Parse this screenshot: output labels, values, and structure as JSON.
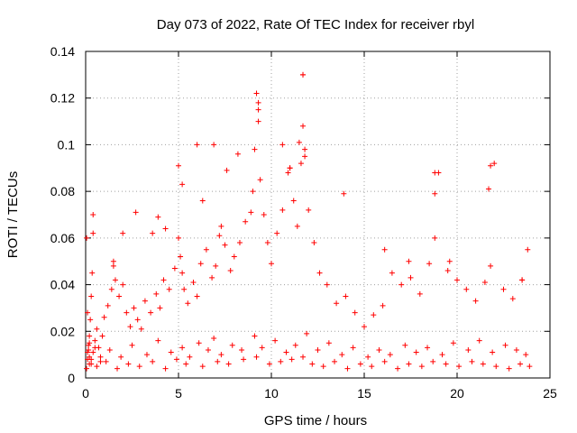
{
  "colors": {
    "marker": "#ff0000",
    "grid": "#a0a0a0",
    "axis": "#000000",
    "background": "#ffffff"
  },
  "chart_data": {
    "type": "scatter",
    "title": "Day 073 of 2022, Rate Of TEC Index for receiver rbyl",
    "xlabel": "GPS time / hours",
    "ylabel": "ROTI / TECUs",
    "xlim": [
      0,
      25
    ],
    "ylim": [
      0,
      0.14
    ],
    "grid": true,
    "marker": "+",
    "x_ticks": [
      0,
      5,
      10,
      15,
      20,
      25
    ],
    "x_tick_labels": [
      "0",
      "5",
      "10",
      "15",
      "20",
      "25"
    ],
    "y_ticks": [
      0,
      0.02,
      0.04,
      0.06,
      0.08,
      0.1,
      0.12,
      0.14
    ],
    "y_tick_labels": [
      "0",
      "0.02",
      "0.04",
      "0.06",
      "0.08",
      "0.1",
      "0.12",
      "0.14"
    ],
    "series": [
      {
        "name": "ROTI",
        "x": [
          0.05,
          0.1,
          0.15,
          0.2,
          0.25,
          0.3,
          0.35,
          0.4,
          0.05,
          0.1,
          0.15,
          0.2,
          0.3,
          0.4,
          0.5,
          0.6,
          0.7,
          0.8,
          0.9,
          1.0,
          1.2,
          1.4,
          1.5,
          1.6,
          1.8,
          2.0,
          2.2,
          2.4,
          2.6,
          2.8,
          3.0,
          3.2,
          3.5,
          3.8,
          4.0,
          4.2,
          4.5,
          4.8,
          5.0,
          5.1,
          5.2,
          5.3,
          5.5,
          5.8,
          6.0,
          6.2,
          6.5,
          6.8,
          7.0,
          7.2,
          7.5,
          7.8,
          8.0,
          8.3,
          8.6,
          8.9,
          9.0,
          9.1,
          9.2,
          9.3,
          9.4,
          9.6,
          9.8,
          10.0,
          10.3,
          10.6,
          10.9,
          11.0,
          11.2,
          11.4,
          11.6,
          11.7,
          11.8,
          12.0,
          12.3,
          12.6,
          13.0,
          13.5,
          14.0,
          14.5,
          15.0,
          15.5,
          16.0,
          16.5,
          17.0,
          17.5,
          18.0,
          18.5,
          18.8,
          19.0,
          19.5,
          20.0,
          20.5,
          21.0,
          21.5,
          21.8,
          22.0,
          22.5,
          23.0,
          23.5,
          23.8,
          0.1,
          0.2,
          0.3,
          0.5,
          0.8,
          1.3,
          1.9,
          2.5,
          3.3,
          3.9,
          4.6,
          5.2,
          5.6,
          6.1,
          6.6,
          6.9,
          7.3,
          7.9,
          8.4,
          9.1,
          9.5,
          10.2,
          10.8,
          11.3,
          11.9,
          12.5,
          13.1,
          13.8,
          14.4,
          15.2,
          15.8,
          16.4,
          17.2,
          17.8,
          18.4,
          19.2,
          19.8,
          20.6,
          21.2,
          21.9,
          22.6,
          23.2,
          23.7,
          0.2,
          0.6,
          1.1,
          1.7,
          2.3,
          2.9,
          3.6,
          4.3,
          4.9,
          5.4,
          6.3,
          7.1,
          7.7,
          8.5,
          9.2,
          9.9,
          10.5,
          11.1,
          11.7,
          12.2,
          12.8,
          13.4,
          14.1,
          14.8,
          15.4,
          16.1,
          16.8,
          17.4,
          18.1,
          18.7,
          19.4,
          20.1,
          20.8,
          21.4,
          22.1,
          22.8,
          23.4,
          23.9,
          0.4,
          1.5,
          2.7,
          3.9,
          5.0,
          5.2,
          6.0,
          6.9,
          7.6,
          8.2,
          9.2,
          9.3,
          9.3,
          10.6,
          11.0,
          11.5,
          11.7,
          11.7,
          11.8,
          13.9,
          16.1,
          17.4,
          18.8,
          18.8,
          19.6,
          21.8,
          21.7,
          23.5,
          2.0,
          3.6,
          4.3,
          6.3,
          7.3
        ],
        "y": [
          0.004,
          0.008,
          0.012,
          0.018,
          0.025,
          0.035,
          0.045,
          0.062,
          0.06,
          0.028,
          0.014,
          0.009,
          0.006,
          0.011,
          0.016,
          0.021,
          0.013,
          0.009,
          0.018,
          0.026,
          0.031,
          0.038,
          0.048,
          0.042,
          0.035,
          0.04,
          0.028,
          0.022,
          0.03,
          0.025,
          0.021,
          0.033,
          0.028,
          0.036,
          0.03,
          0.042,
          0.038,
          0.047,
          0.06,
          0.052,
          0.045,
          0.038,
          0.032,
          0.041,
          0.035,
          0.049,
          0.055,
          0.043,
          0.048,
          0.061,
          0.057,
          0.046,
          0.052,
          0.058,
          0.067,
          0.071,
          0.08,
          0.098,
          0.122,
          0.11,
          0.085,
          0.07,
          0.058,
          0.049,
          0.062,
          0.072,
          0.088,
          0.09,
          0.076,
          0.065,
          0.092,
          0.13,
          0.098,
          0.072,
          0.058,
          0.045,
          0.04,
          0.032,
          0.035,
          0.028,
          0.022,
          0.027,
          0.031,
          0.045,
          0.04,
          0.043,
          0.036,
          0.049,
          0.06,
          0.088,
          0.046,
          0.042,
          0.038,
          0.033,
          0.041,
          0.048,
          0.092,
          0.038,
          0.034,
          0.042,
          0.055,
          0.011,
          0.015,
          0.008,
          0.013,
          0.007,
          0.012,
          0.009,
          0.014,
          0.01,
          0.016,
          0.011,
          0.013,
          0.009,
          0.015,
          0.012,
          0.017,
          0.01,
          0.014,
          0.012,
          0.018,
          0.013,
          0.016,
          0.011,
          0.014,
          0.019,
          0.012,
          0.015,
          0.01,
          0.013,
          0.009,
          0.012,
          0.01,
          0.014,
          0.011,
          0.013,
          0.01,
          0.015,
          0.012,
          0.016,
          0.011,
          0.014,
          0.012,
          0.01,
          0.006,
          0.005,
          0.007,
          0.004,
          0.006,
          0.005,
          0.007,
          0.004,
          0.008,
          0.006,
          0.005,
          0.007,
          0.006,
          0.008,
          0.009,
          0.006,
          0.007,
          0.008,
          0.009,
          0.006,
          0.005,
          0.007,
          0.004,
          0.006,
          0.005,
          0.007,
          0.004,
          0.006,
          0.005,
          0.007,
          0.006,
          0.005,
          0.007,
          0.006,
          0.005,
          0.004,
          0.006,
          0.005,
          0.07,
          0.05,
          0.071,
          0.069,
          0.091,
          0.083,
          0.1,
          0.1,
          0.089,
          0.096,
          0.122,
          0.118,
          0.115,
          0.1,
          0.09,
          0.101,
          0.13,
          0.108,
          0.095,
          0.079,
          0.055,
          0.05,
          0.088,
          0.079,
          0.05,
          0.091,
          0.081,
          0.042,
          0.062,
          0.062,
          0.064,
          0.076,
          0.065
        ]
      }
    ]
  }
}
